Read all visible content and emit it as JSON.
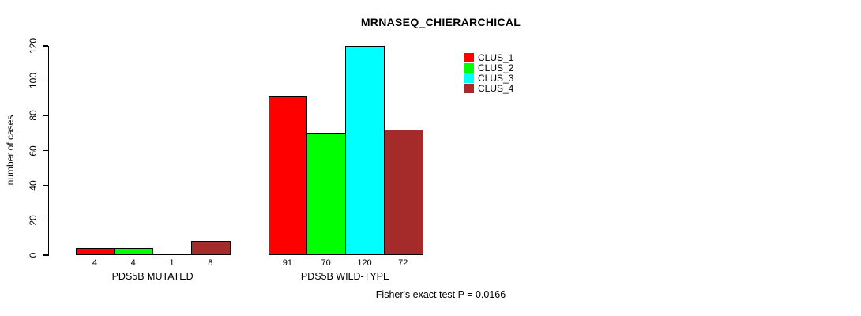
{
  "chart_data": {
    "type": "bar",
    "title": "MRNASEQ_CHIERARCHICAL",
    "xlabel": "",
    "ylabel": "number of cases",
    "categories": [
      "PDS5B MUTATED",
      "PDS5B WILD-TYPE"
    ],
    "series": [
      {
        "name": "CLUS_1",
        "color": "#ff0000",
        "values": [
          4,
          91
        ]
      },
      {
        "name": "CLUS_2",
        "color": "#00ff00",
        "values": [
          4,
          70
        ]
      },
      {
        "name": "CLUS_3",
        "color": "#00ffff",
        "values": [
          1,
          120
        ]
      },
      {
        "name": "CLUS_4",
        "color": "#a52a2a",
        "values": [
          8,
          72
        ]
      }
    ],
    "bar_labels": [
      [
        "4",
        "4",
        "1",
        "8"
      ],
      [
        "91",
        "70",
        "120",
        "72"
      ]
    ],
    "y_ticks": [
      0,
      20,
      40,
      60,
      80,
      100,
      120
    ],
    "ylim": [
      0,
      120
    ],
    "grid": false,
    "legend_position": "top-right",
    "annotation": "Fisher's exact test P = 0.0166"
  }
}
